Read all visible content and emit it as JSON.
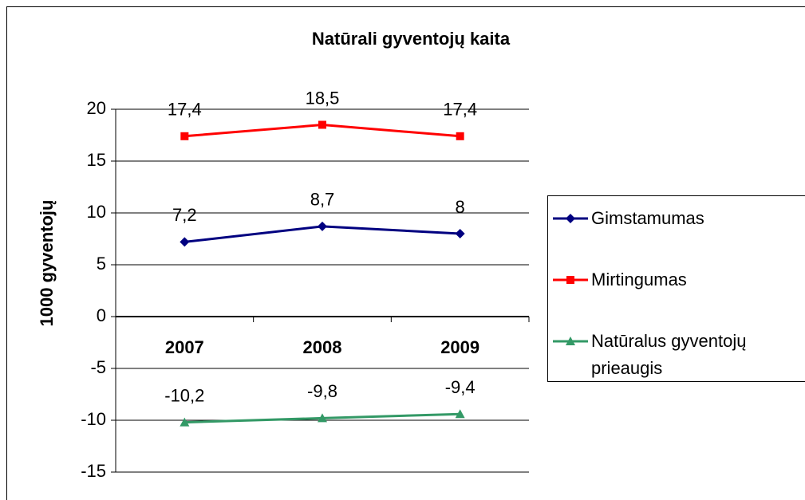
{
  "chart_data": {
    "type": "line",
    "title": "Natūrali gyventojų kaita",
    "y_label": "1000 gyventojų",
    "categories": [
      "2007",
      "2008",
      "2009"
    ],
    "series": [
      {
        "name": "Gimstamumas",
        "color": "#000080",
        "marker": "diamond",
        "values": [
          7.2,
          8.7,
          8
        ],
        "value_labels": [
          "7,2",
          "8,7",
          "8"
        ]
      },
      {
        "name": "Mirtingumas",
        "color": "#ff0000",
        "marker": "square",
        "values": [
          17.4,
          18.5,
          17.4
        ],
        "value_labels": [
          "17,4",
          "18,5",
          "17,4"
        ]
      },
      {
        "name": "Natūralus gyventojų prieaugis",
        "color": "#339966",
        "marker": "triangle",
        "values": [
          -10.2,
          -9.8,
          -9.4
        ],
        "value_labels": [
          "-10,2",
          "-9,8",
          "-9,4"
        ]
      }
    ],
    "ylim": [
      -15,
      20
    ],
    "yticks": [
      -15,
      -10,
      -5,
      0,
      5,
      10,
      15,
      20
    ],
    "grid": true,
    "legend": "right"
  }
}
